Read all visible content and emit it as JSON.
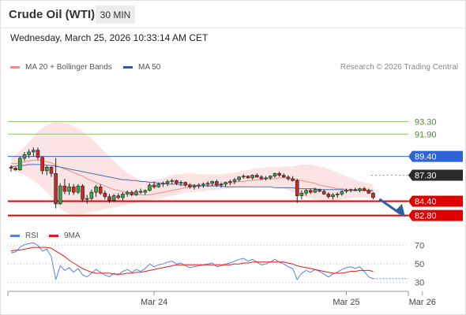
{
  "header": {
    "title": "Crude Oil (WTI)",
    "timeframe": "30 MIN",
    "timestamp": "Wednesday, March 25, 2026 10:33:14 AM CET",
    "credit": "Research © 2026 Trading Central"
  },
  "legend": {
    "ma20": {
      "label": "MA 20 + Bollinger Bands",
      "color": "#f08c8c"
    },
    "ma50": {
      "label": "MA 50",
      "color": "#2f5aa0"
    }
  },
  "rsi_legend": {
    "rsi": {
      "label": "RSI",
      "color": "#5b7fe0"
    },
    "ma9": {
      "label": "9MA",
      "color": "#e41a1a"
    }
  },
  "chart_data": [
    {
      "type": "candlestick",
      "title": "Crude Oil (WTI)",
      "interval": "30 MIN",
      "ylim": [
        81.8,
        96.5
      ],
      "x_ticks": [
        {
          "label": "Mar 24",
          "i": 32
        },
        {
          "label": "Mar 25",
          "i": 75
        },
        {
          "label": "Mar 26",
          "i": 92
        }
      ],
      "levels": [
        {
          "value": 93.3,
          "label": "93.30",
          "color": "#8cc06c",
          "style": "line",
          "tag": false
        },
        {
          "value": 91.9,
          "label": "91.90",
          "color": "#8cc06c",
          "style": "line",
          "tag": false
        },
        {
          "value": 89.4,
          "label": "89.40",
          "color": "#2f64d8",
          "style": "line",
          "tag": true
        },
        {
          "value": 87.3,
          "label": "87.30",
          "color": "#2a2a2a",
          "style": "dotted",
          "tag": true
        },
        {
          "value": 84.4,
          "label": "84.40",
          "color": "#e00000",
          "style": "thick",
          "tag": true
        },
        {
          "value": 82.8,
          "label": "82.80",
          "color": "#e00000",
          "style": "thick",
          "tag": true
        }
      ],
      "candles": [
        [
          88.2,
          88.4,
          87.7,
          88.1
        ],
        [
          88.1,
          88.2,
          87.8,
          87.9
        ],
        [
          87.9,
          89.4,
          87.8,
          89.2
        ],
        [
          89.2,
          89.9,
          88.9,
          89.6
        ],
        [
          89.6,
          90.2,
          89.2,
          89.9
        ],
        [
          89.9,
          90.4,
          89.4,
          90.1
        ],
        [
          90.1,
          90.4,
          89.0,
          89.3
        ],
        [
          89.3,
          89.4,
          87.4,
          87.8
        ],
        [
          87.8,
          88.4,
          87.3,
          88.2
        ],
        [
          88.2,
          88.3,
          87.1,
          87.5
        ],
        [
          87.5,
          89.2,
          83.6,
          84.1
        ],
        [
          84.1,
          86.4,
          84.0,
          86.1
        ],
        [
          86.1,
          86.9,
          85.2,
          85.5
        ],
        [
          85.5,
          86.4,
          85.1,
          86.0
        ],
        [
          86.0,
          86.3,
          85.1,
          85.4
        ],
        [
          85.4,
          86.3,
          85.2,
          86.1
        ],
        [
          86.1,
          86.3,
          84.3,
          84.6
        ],
        [
          84.6,
          85.1,
          84.1,
          84.7
        ],
        [
          84.7,
          85.7,
          84.5,
          85.4
        ],
        [
          85.4,
          86.2,
          84.9,
          86.0
        ],
        [
          86.0,
          86.3,
          85.1,
          85.3
        ],
        [
          85.3,
          85.6,
          84.6,
          84.9
        ],
        [
          84.9,
          85.2,
          84.2,
          84.5
        ],
        [
          84.5,
          85.2,
          84.3,
          85.0
        ],
        [
          85.0,
          85.3,
          84.6,
          84.8
        ],
        [
          84.8,
          85.4,
          84.5,
          85.2
        ],
        [
          85.2,
          85.6,
          84.9,
          85.4
        ],
        [
          85.4,
          85.6,
          85.0,
          85.1
        ],
        [
          85.1,
          85.7,
          85.0,
          85.5
        ],
        [
          85.5,
          85.8,
          85.2,
          85.4
        ],
        [
          85.4,
          85.7,
          85.1,
          85.6
        ],
        [
          85.6,
          86.4,
          85.5,
          86.2
        ],
        [
          86.2,
          86.6,
          85.8,
          86.0
        ],
        [
          86.0,
          86.5,
          85.9,
          86.3
        ],
        [
          86.3,
          86.6,
          86.0,
          86.4
        ],
        [
          86.4,
          86.8,
          86.1,
          86.6
        ],
        [
          86.6,
          86.9,
          86.3,
          86.7
        ],
        [
          86.7,
          86.8,
          86.2,
          86.4
        ],
        [
          86.4,
          86.7,
          86.1,
          86.5
        ],
        [
          86.5,
          86.6,
          86.0,
          86.2
        ],
        [
          86.2,
          86.4,
          85.8,
          86.0
        ],
        [
          86.0,
          86.3,
          85.7,
          86.1
        ],
        [
          86.1,
          86.4,
          85.8,
          86.2
        ],
        [
          86.2,
          86.5,
          85.9,
          86.3
        ],
        [
          86.3,
          86.6,
          86.0,
          86.4
        ],
        [
          86.4,
          86.7,
          86.1,
          86.6
        ],
        [
          86.6,
          86.8,
          86.0,
          86.2
        ],
        [
          86.2,
          86.5,
          85.9,
          86.3
        ],
        [
          86.3,
          86.6,
          86.0,
          86.5
        ],
        [
          86.5,
          86.8,
          86.2,
          86.6
        ],
        [
          86.6,
          87.0,
          86.3,
          86.8
        ],
        [
          86.8,
          87.2,
          86.6,
          87.1
        ],
        [
          87.1,
          87.4,
          86.9,
          87.2
        ],
        [
          87.2,
          87.3,
          86.9,
          87.0
        ],
        [
          87.0,
          87.4,
          86.8,
          87.3
        ],
        [
          87.3,
          87.5,
          87.0,
          87.1
        ],
        [
          87.1,
          87.3,
          86.8,
          86.9
        ],
        [
          86.9,
          87.2,
          86.7,
          87.0
        ],
        [
          87.0,
          87.3,
          86.8,
          87.2
        ],
        [
          87.2,
          87.6,
          87.0,
          87.5
        ],
        [
          87.5,
          87.7,
          87.1,
          87.3
        ],
        [
          87.3,
          87.5,
          87.0,
          87.1
        ],
        [
          87.1,
          87.3,
          86.7,
          86.9
        ],
        [
          86.9,
          87.2,
          86.6,
          86.7
        ],
        [
          86.7,
          86.9,
          84.2,
          85.0
        ],
        [
          85.0,
          85.6,
          84.6,
          85.3
        ],
        [
          85.3,
          85.8,
          85.0,
          85.6
        ],
        [
          85.6,
          85.8,
          85.2,
          85.4
        ],
        [
          85.4,
          85.9,
          85.3,
          85.7
        ],
        [
          85.7,
          85.8,
          85.4,
          85.5
        ],
        [
          85.5,
          85.7,
          85.1,
          85.2
        ],
        [
          85.2,
          85.4,
          84.7,
          84.9
        ],
        [
          84.9,
          85.3,
          84.6,
          85.1
        ],
        [
          85.1,
          85.4,
          84.8,
          85.2
        ],
        [
          85.2,
          85.6,
          85.0,
          85.5
        ],
        [
          85.5,
          85.8,
          85.3,
          85.6
        ],
        [
          85.6,
          85.8,
          85.4,
          85.7
        ],
        [
          85.7,
          85.9,
          85.5,
          85.6
        ],
        [
          85.6,
          85.9,
          85.4,
          85.8
        ],
        [
          85.8,
          86.0,
          85.5,
          85.6
        ],
        [
          85.6,
          85.8,
          85.2,
          85.3
        ],
        [
          85.3,
          85.4,
          84.6,
          84.8
        ]
      ],
      "ma20": [
        88.6,
        88.6,
        88.7,
        88.8,
        88.9,
        89.0,
        89.0,
        88.9,
        88.8,
        88.7,
        88.4,
        88.2,
        88.0,
        87.8,
        87.6,
        87.4,
        87.2,
        86.9,
        86.7,
        86.5,
        86.3,
        86.1,
        85.9,
        85.7,
        85.6,
        85.5,
        85.4,
        85.3,
        85.2,
        85.1,
        85.1,
        85.1,
        85.2,
        85.3,
        85.4,
        85.5,
        85.6,
        85.7,
        85.8,
        85.9,
        86.0,
        86.0,
        86.1,
        86.1,
        86.2,
        86.2,
        86.3,
        86.3,
        86.4,
        86.4,
        86.5,
        86.6,
        86.6,
        86.7,
        86.7,
        86.8,
        86.8,
        86.9,
        86.9,
        86.9,
        87.0,
        87.0,
        87.0,
        86.9,
        86.8,
        86.7,
        86.6,
        86.5,
        86.4,
        86.2,
        86.1,
        86.0,
        85.9,
        85.8,
        85.8,
        85.7,
        85.6,
        85.6,
        85.6,
        85.6,
        85.5,
        85.5
      ],
      "bb_upper": [
        89.2,
        89.6,
        90.0,
        90.5,
        91.0,
        91.6,
        92.2,
        92.6,
        92.9,
        93.1,
        93.2,
        93.2,
        93.1,
        93.0,
        92.8,
        92.5,
        92.2,
        91.8,
        91.4,
        90.9,
        90.4,
        89.9,
        89.4,
        88.9,
        88.4,
        88.0,
        87.6,
        87.3,
        87.0,
        86.8,
        86.7,
        86.7,
        86.8,
        86.9,
        87.0,
        87.2,
        87.3,
        87.4,
        87.4,
        87.5,
        87.5,
        87.5,
        87.4,
        87.4,
        87.4,
        87.4,
        87.4,
        87.4,
        87.5,
        87.5,
        87.6,
        87.7,
        87.8,
        87.9,
        88.0,
        88.1,
        88.1,
        88.2,
        88.2,
        88.2,
        88.2,
        88.3,
        88.3,
        88.3,
        88.4,
        88.5,
        88.5,
        88.5,
        88.4,
        88.3,
        88.2,
        88.0,
        87.8,
        87.6,
        87.4,
        87.2,
        87.0,
        86.8,
        86.6,
        86.5,
        86.4,
        86.3
      ],
      "bb_lower": [
        87.9,
        87.7,
        87.5,
        87.3,
        87.0,
        86.7,
        86.3,
        85.9,
        85.4,
        84.8,
        84.2,
        83.6,
        83.2,
        83.0,
        82.9,
        82.9,
        83.0,
        83.1,
        83.2,
        83.3,
        83.4,
        83.5,
        83.6,
        83.7,
        83.8,
        83.9,
        84.0,
        84.1,
        84.2,
        84.3,
        84.4,
        84.5,
        84.6,
        84.7,
        84.8,
        84.9,
        85.0,
        85.1,
        85.2,
        85.3,
        85.4,
        85.4,
        85.5,
        85.5,
        85.6,
        85.6,
        85.7,
        85.7,
        85.8,
        85.8,
        85.9,
        85.9,
        86.0,
        86.0,
        86.1,
        86.1,
        86.1,
        86.1,
        86.1,
        86.0,
        85.9,
        85.8,
        85.6,
        85.4,
        85.2,
        85.0,
        84.8,
        84.7,
        84.6,
        84.5,
        84.5,
        84.4,
        84.4,
        84.5,
        84.6,
        84.6,
        84.7,
        84.8,
        84.8,
        84.8,
        84.8,
        84.8
      ],
      "ma50": [
        88.3,
        88.3,
        88.4,
        88.4,
        88.5,
        88.5,
        88.5,
        88.5,
        88.4,
        88.4,
        88.3,
        88.2,
        88.1,
        88.0,
        87.9,
        87.8,
        87.7,
        87.6,
        87.5,
        87.4,
        87.3,
        87.2,
        87.1,
        87.0,
        86.9,
        86.8,
        86.8,
        86.7,
        86.7,
        86.6,
        86.6,
        86.5,
        86.5,
        86.4,
        86.4,
        86.3,
        86.3,
        86.3,
        86.2,
        86.2,
        86.2,
        86.2,
        86.1,
        86.1,
        86.1,
        86.1,
        86.1,
        86.1,
        86.0,
        86.0,
        86.0,
        86.0,
        86.0,
        86.0,
        86.0,
        86.0,
        86.0,
        86.0,
        86.0,
        85.9,
        85.9,
        85.9,
        85.9,
        85.9,
        85.8,
        85.8,
        85.8,
        85.8,
        85.8,
        85.7,
        85.7,
        85.7,
        85.7,
        85.7,
        85.7,
        85.6,
        85.6,
        85.6,
        85.6,
        85.6,
        85.6,
        85.6
      ]
    },
    {
      "type": "line",
      "title": "RSI",
      "ylim": [
        22,
        80
      ],
      "y_ticks": [
        70,
        50,
        30
      ],
      "series": [
        {
          "name": "RSI",
          "color": "#5b7fe0",
          "values": [
            62,
            63,
            68,
            71,
            72,
            73,
            70,
            64,
            66,
            58,
            33,
            48,
            43,
            46,
            41,
            45,
            38,
            36,
            40,
            44,
            41,
            38,
            36,
            40,
            38,
            42,
            44,
            41,
            44,
            42,
            45,
            50,
            47,
            49,
            50,
            52,
            53,
            50,
            51,
            48,
            46,
            47,
            48,
            49,
            50,
            51,
            47,
            48,
            50,
            51,
            53,
            55,
            56,
            53,
            55,
            52,
            49,
            50,
            52,
            55,
            52,
            50,
            47,
            45,
            33,
            40,
            43,
            41,
            44,
            42,
            39,
            36,
            39,
            41,
            44,
            46,
            47,
            45,
            47,
            42,
            36,
            34
          ]
        },
        {
          "name": "9MA",
          "color": "#e41a1a",
          "values": [
            64,
            65,
            65,
            66,
            67,
            68,
            68,
            68,
            68,
            67,
            64,
            61,
            58,
            54,
            51,
            48,
            45,
            43,
            41,
            40,
            40,
            40,
            40,
            39,
            39,
            39,
            40,
            40,
            41,
            41,
            42,
            43,
            44,
            45,
            46,
            47,
            48,
            49,
            49,
            49,
            49,
            49,
            49,
            49,
            49,
            49,
            49,
            49,
            49,
            49,
            50,
            50,
            51,
            51,
            52,
            52,
            52,
            52,
            52,
            52,
            52,
            52,
            51,
            50,
            48,
            47,
            46,
            45,
            44,
            43,
            42,
            41,
            40,
            40,
            40,
            41,
            42,
            42,
            43,
            43,
            43,
            42
          ]
        }
      ]
    }
  ]
}
